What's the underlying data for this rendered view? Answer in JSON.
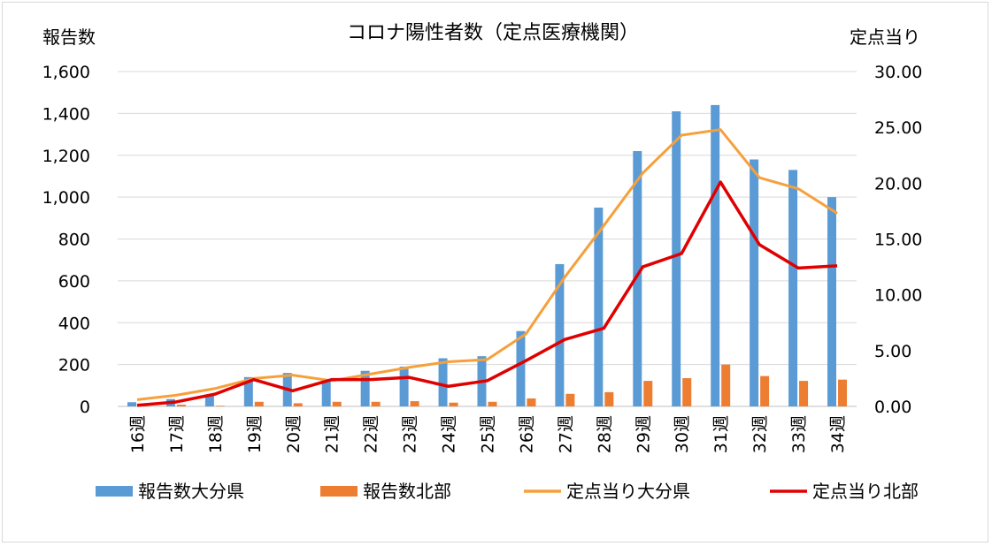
{
  "chart_data": {
    "type": "bar+line",
    "title": "コロナ陽性者数（定点医療機関）",
    "ylabel_left": "報告数",
    "ylabel_right": "定点当り",
    "categories": [
      "16週",
      "17週",
      "18週",
      "19週",
      "20週",
      "21週",
      "22週",
      "23週",
      "24週",
      "25週",
      "26週",
      "27週",
      "28週",
      "29週",
      "30週",
      "31週",
      "32週",
      "33週",
      "34週"
    ],
    "ylim_left": [
      0,
      1600
    ],
    "ylim_right": [
      0,
      30
    ],
    "left_ticks": [
      "0",
      "200",
      "400",
      "600",
      "800",
      "1,000",
      "1,200",
      "1,400",
      "1,600"
    ],
    "right_ticks": [
      "0.00",
      "5.00",
      "10.00",
      "15.00",
      "20.00",
      "25.00",
      "30.00"
    ],
    "bar_series": [
      {
        "name": "報告数大分県",
        "axis": "left",
        "color": "#5b9bd5",
        "values": [
          20,
          35,
          55,
          140,
          160,
          125,
          170,
          190,
          230,
          240,
          360,
          680,
          950,
          1220,
          1410,
          1440,
          1180,
          1130,
          1000
        ]
      },
      {
        "name": "報告数北部",
        "axis": "left",
        "color": "#ed7d31",
        "values": [
          2,
          8,
          3,
          22,
          15,
          22,
          22,
          25,
          18,
          22,
          38,
          60,
          68,
          122,
          135,
          200,
          145,
          122,
          128
        ]
      }
    ],
    "line_series": [
      {
        "name": "定点当り大分県",
        "axis": "right",
        "color": "#f6a03c",
        "values": [
          0.6,
          1.0,
          1.6,
          2.5,
          2.8,
          2.3,
          2.9,
          3.5,
          4.0,
          4.2,
          6.5,
          11.6,
          16.2,
          20.9,
          24.3,
          24.8,
          20.5,
          19.5,
          17.3
        ]
      },
      {
        "name": "定点当り北部",
        "axis": "right",
        "color": "#e00000",
        "values": [
          0.1,
          0.4,
          1.1,
          2.4,
          1.4,
          2.4,
          2.4,
          2.6,
          1.8,
          2.3,
          4.1,
          6.0,
          7.0,
          12.5,
          13.7,
          20.1,
          14.5,
          12.4,
          12.6
        ]
      }
    ],
    "legend_position": "bottom",
    "grid": true
  }
}
